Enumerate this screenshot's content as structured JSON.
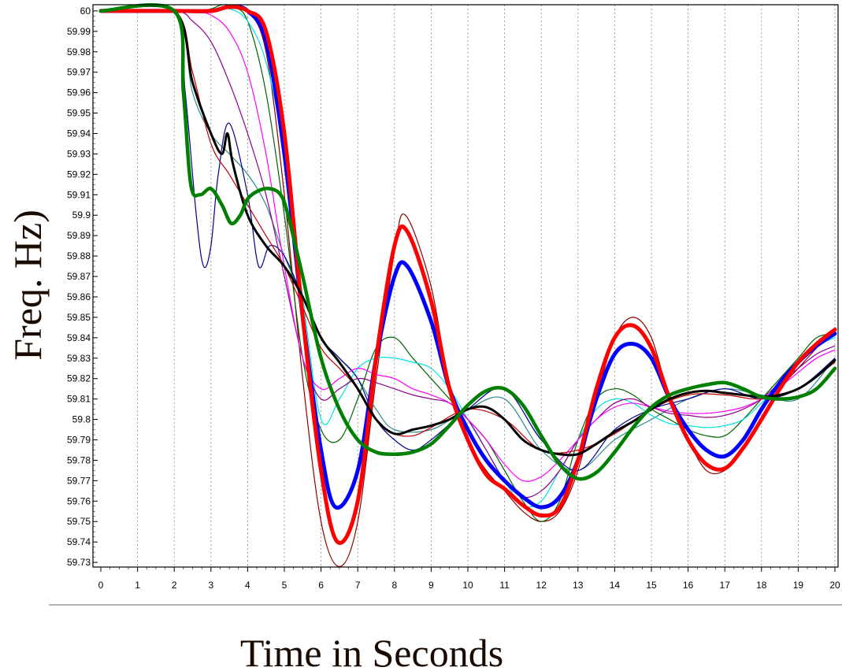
{
  "chart_data": {
    "type": "line",
    "title": "",
    "xlabel": "Time in Seconds",
    "ylabel": "Freq. Hz)",
    "xlim": [
      0,
      20
    ],
    "ylim": [
      59.73,
      60.0
    ],
    "x_ticks": [
      0,
      1,
      2,
      3,
      4,
      5,
      6,
      7,
      8,
      9,
      10,
      11,
      12,
      13,
      14,
      15,
      16,
      17,
      18,
      19,
      20
    ],
    "y_ticks": [
      "60",
      "59.99",
      "59.98",
      "59.97",
      "59.96",
      "59.95",
      "59.94",
      "59.93",
      "59.92",
      "59.91",
      "59.9",
      "59.89",
      "59.88",
      "59.87",
      "59.86",
      "59.85",
      "59.84",
      "59.83",
      "59.82",
      "59.81",
      "59.8",
      "59.79",
      "59.78",
      "59.77",
      "59.76",
      "59.75",
      "59.74",
      "59.73"
    ],
    "grid": "vertical dashed",
    "series": [
      {
        "color": "#8b0000",
        "width": 1.2,
        "x": [
          0,
          2,
          3,
          3.5,
          4,
          4.5,
          5,
          5.5,
          6,
          6.5,
          7,
          7.5,
          8,
          8.3,
          9,
          9.5,
          10,
          10.5,
          11,
          11.5,
          12,
          12.5,
          13,
          13.5,
          14,
          14.5,
          15,
          15.5,
          16,
          16.5,
          17,
          17.5,
          18,
          18.5,
          19,
          19.5,
          20
        ],
        "y": [
          60.0,
          60.0,
          60.0,
          60.002,
          60.0,
          59.98,
          59.91,
          59.82,
          59.75,
          59.728,
          59.75,
          59.82,
          59.882,
          59.9,
          59.865,
          59.815,
          59.79,
          59.775,
          59.765,
          59.755,
          59.75,
          59.755,
          59.775,
          59.81,
          59.84,
          59.85,
          59.84,
          59.81,
          59.79,
          59.775,
          59.775,
          59.785,
          59.8,
          59.815,
          59.825,
          59.835,
          59.845
        ]
      },
      {
        "color": "#2e8b8b",
        "width": 1.2,
        "x": [
          0,
          2,
          2.5,
          3,
          3.5,
          4,
          4.5,
          5,
          5.5,
          6,
          6.5,
          7,
          7.5,
          8,
          9,
          10,
          11,
          12,
          13,
          14,
          15,
          16,
          17,
          18,
          19,
          20
        ],
        "y": [
          60.0,
          60.0,
          59.96,
          59.94,
          59.93,
          59.92,
          59.905,
          59.88,
          59.86,
          59.84,
          59.83,
          59.82,
          59.805,
          59.795,
          59.795,
          59.805,
          59.81,
          59.785,
          59.775,
          59.79,
          59.8,
          59.81,
          59.815,
          59.812,
          59.81,
          59.83
        ]
      },
      {
        "color": "#00008b",
        "width": 1.2,
        "x": [
          0,
          2,
          2.3,
          2.6,
          2.8,
          3,
          3.2,
          3.5,
          4,
          4.3,
          4.6,
          5,
          5.5,
          6,
          6.5,
          7,
          7.5,
          8,
          8.5,
          9,
          10,
          11,
          12,
          13,
          14,
          15,
          16,
          17,
          18,
          19,
          20
        ],
        "y": [
          60.0,
          60.0,
          59.96,
          59.9,
          59.875,
          59.885,
          59.92,
          59.945,
          59.91,
          59.875,
          59.885,
          59.88,
          59.86,
          59.84,
          59.83,
          59.82,
          59.8,
          59.79,
          59.785,
          59.79,
          59.805,
          59.815,
          59.79,
          59.775,
          59.795,
          59.805,
          59.81,
          59.815,
          59.81,
          59.815,
          59.83
        ]
      },
      {
        "color": "#006400",
        "width": 1.2,
        "x": [
          0,
          2,
          2.5,
          3,
          3.3,
          3.6,
          4,
          4.5,
          5,
          5.5,
          6,
          6.5,
          7,
          7.5,
          8,
          8.5,
          9,
          9.5,
          10,
          10.5,
          11,
          11.5,
          12,
          12.5,
          13,
          13.5,
          14,
          14.5,
          15,
          15.5,
          16,
          16.5,
          17,
          17.5,
          18,
          18.5,
          19,
          19.5,
          20
        ],
        "y": [
          60.0,
          60.0,
          60.0,
          60.001,
          60.003,
          60.002,
          59.995,
          59.96,
          59.9,
          59.83,
          59.795,
          59.79,
          59.81,
          59.835,
          59.84,
          59.83,
          59.82,
          59.81,
          59.8,
          59.79,
          59.775,
          59.76,
          59.75,
          59.76,
          59.79,
          59.81,
          59.815,
          59.812,
          59.805,
          59.8,
          59.795,
          59.792,
          59.792,
          59.8,
          59.81,
          59.82,
          59.83,
          59.84,
          59.842
        ]
      },
      {
        "color": "#00e0e0",
        "width": 1.2,
        "x": [
          0,
          2,
          2.5,
          3,
          3.5,
          4,
          4.5,
          5,
          5.5,
          6,
          6.5,
          7,
          7.5,
          8,
          8.5,
          9,
          9.5,
          10,
          10.5,
          11,
          11.5,
          12,
          12.5,
          13,
          13.5,
          14,
          14.5,
          15,
          15.5,
          16,
          16.5,
          17,
          17.5,
          18,
          18.5,
          19,
          19.5,
          20
        ],
        "y": [
          60.0,
          60.0,
          60.0,
          60.0,
          60.001,
          59.995,
          59.975,
          59.93,
          59.86,
          59.8,
          59.81,
          59.825,
          59.83,
          59.83,
          59.828,
          59.825,
          59.815,
          59.8,
          59.785,
          59.77,
          59.758,
          59.76,
          59.775,
          59.79,
          59.805,
          59.81,
          59.808,
          59.802,
          59.798,
          59.797,
          59.796,
          59.797,
          59.8,
          59.808,
          59.818,
          59.828,
          59.836,
          59.84
        ]
      },
      {
        "color": "#8b008b",
        "width": 1.2,
        "x": [
          0,
          2,
          2.5,
          3,
          3.5,
          4,
          4.5,
          5,
          5.5,
          6,
          6.5,
          7,
          7.5,
          8,
          8.5,
          9,
          9.5,
          10,
          10.5,
          11,
          11.5,
          12,
          12.5,
          13,
          13.5,
          14,
          14.5,
          15,
          15.5,
          16,
          16.5,
          17,
          17.5,
          18,
          18.5,
          19,
          19.5,
          20
        ],
        "y": [
          60.0,
          60.0,
          59.995,
          59.985,
          59.965,
          59.94,
          59.91,
          59.87,
          59.83,
          59.81,
          59.815,
          59.82,
          59.818,
          59.815,
          59.812,
          59.81,
          59.808,
          59.8,
          59.785,
          59.77,
          59.762,
          59.765,
          59.775,
          59.79,
          59.8,
          59.808,
          59.81,
          59.806,
          59.803,
          59.802,
          59.801,
          59.802,
          59.805,
          59.81,
          59.818,
          59.825,
          59.832,
          59.836
        ]
      },
      {
        "color": "#ff00ff",
        "width": 1.2,
        "x": [
          0,
          2,
          2.5,
          3,
          3.5,
          4,
          4.5,
          5,
          5.5,
          6,
          6.5,
          7,
          7.5,
          8,
          8.5,
          9,
          9.5,
          10,
          10.5,
          11,
          11.5,
          12,
          12.5,
          13,
          13.5,
          14,
          14.5,
          15,
          15.5,
          16,
          16.5,
          17,
          17.5,
          18,
          18.5,
          19,
          19.5,
          20
        ],
        "y": [
          60.0,
          60.0,
          60.0,
          59.998,
          59.99,
          59.97,
          59.93,
          59.875,
          59.83,
          59.815,
          59.82,
          59.825,
          59.822,
          59.82,
          59.815,
          59.812,
          59.808,
          59.8,
          59.79,
          59.778,
          59.77,
          59.772,
          59.78,
          59.79,
          59.8,
          59.806,
          59.808,
          59.806,
          59.804,
          59.803,
          59.803,
          59.804,
          59.806,
          59.81,
          59.816,
          59.823,
          59.83,
          59.834
        ]
      },
      {
        "color": "#c00000",
        "width": 1.2,
        "x": [
          0,
          2,
          2.5,
          3,
          3.5,
          4,
          4.5,
          5,
          5.5,
          6,
          6.5,
          7,
          7.5,
          8,
          8.5,
          9,
          10,
          11,
          12,
          13,
          14,
          15,
          16,
          17,
          18,
          19,
          20
        ],
        "y": [
          60.0,
          60.0,
          59.97,
          59.935,
          59.92,
          59.905,
          59.89,
          59.875,
          59.855,
          59.835,
          59.825,
          59.815,
          59.8,
          59.793,
          59.792,
          59.796,
          59.805,
          59.8,
          59.785,
          59.785,
          59.793,
          59.805,
          59.812,
          59.812,
          59.81,
          59.815,
          59.828
        ]
      },
      {
        "color": "#0000ff",
        "width": 5,
        "x": [
          0,
          2,
          3,
          3.5,
          4,
          4.5,
          5,
          5.5,
          6,
          6.4,
          7,
          7.5,
          8,
          8.35,
          9,
          9.5,
          10,
          10.5,
          11,
          11.5,
          12,
          12.5,
          13,
          13.5,
          14,
          14.5,
          15,
          15.5,
          16,
          16.5,
          17,
          17.5,
          18,
          18.5,
          19,
          19.5,
          20
        ],
        "y": [
          60.0,
          60.0,
          60.0,
          60.002,
          60.0,
          59.985,
          59.93,
          59.85,
          59.785,
          59.757,
          59.775,
          59.83,
          59.87,
          59.875,
          59.848,
          59.815,
          59.795,
          59.78,
          59.77,
          59.762,
          59.757,
          59.762,
          59.78,
          59.81,
          59.832,
          59.837,
          59.83,
          59.81,
          59.795,
          59.785,
          59.782,
          59.79,
          59.805,
          59.818,
          59.828,
          59.836,
          59.842
        ]
      },
      {
        "color": "#ff0000",
        "width": 5,
        "x": [
          0,
          2,
          3,
          3.5,
          4,
          4.5,
          5,
          5.5,
          6,
          6.45,
          7,
          7.5,
          8,
          8.35,
          9,
          9.5,
          10,
          10.5,
          11,
          11.5,
          12,
          12.5,
          13,
          13.5,
          14,
          14.5,
          15,
          15.5,
          16,
          16.5,
          17,
          17.5,
          18,
          18.5,
          19,
          19.5,
          20
        ],
        "y": [
          60.0,
          60.0,
          60.0,
          60.002,
          60.0,
          59.99,
          59.94,
          59.85,
          59.775,
          59.74,
          59.76,
          59.83,
          59.885,
          59.892,
          59.858,
          59.815,
          59.79,
          59.773,
          59.766,
          59.758,
          59.753,
          59.757,
          59.78,
          59.815,
          59.84,
          59.846,
          59.835,
          59.81,
          59.79,
          59.778,
          59.776,
          59.786,
          59.8,
          59.815,
          59.828,
          59.837,
          59.844
        ]
      },
      {
        "color": "#000000",
        "width": 3,
        "x": [
          0,
          2,
          2.5,
          3,
          3.3,
          3.45,
          3.6,
          4,
          4.5,
          5,
          5.5,
          6,
          6.5,
          7,
          7.5,
          8,
          8.5,
          9,
          9.5,
          10,
          10.5,
          11,
          11.5,
          12,
          12.5,
          13,
          13.5,
          14,
          14.5,
          15,
          15.5,
          16,
          16.5,
          17,
          17.5,
          18,
          18.5,
          19,
          19.5,
          20
        ],
        "y": [
          60.0,
          60.0,
          59.965,
          59.94,
          59.93,
          59.94,
          59.925,
          59.9,
          59.885,
          59.875,
          59.86,
          59.84,
          59.828,
          59.815,
          59.8,
          59.793,
          59.795,
          59.797,
          59.8,
          59.805,
          59.806,
          59.8,
          59.79,
          59.785,
          59.783,
          59.783,
          59.788,
          59.794,
          59.799,
          59.805,
          59.81,
          59.813,
          59.814,
          59.813,
          59.812,
          59.811,
          59.812,
          59.815,
          59.821,
          59.829
        ]
      },
      {
        "color": "#008000",
        "width": 4.5,
        "x": [
          0,
          2,
          2.25,
          2.45,
          2.7,
          3,
          3.3,
          3.55,
          3.8,
          4,
          4.3,
          4.6,
          4.9,
          5.1,
          5.5,
          6,
          6.5,
          7,
          7.5,
          8,
          8.5,
          9,
          9.5,
          10,
          10.5,
          11,
          11.5,
          12,
          12.5,
          13,
          13.5,
          14,
          14.5,
          15,
          15.5,
          16,
          16.5,
          17,
          17.5,
          18,
          18.5,
          19,
          19.5,
          20
        ],
        "y": [
          60.0,
          60.0,
          59.96,
          59.915,
          59.91,
          59.913,
          59.905,
          59.896,
          59.9,
          59.908,
          59.912,
          59.913,
          59.91,
          59.9,
          59.87,
          59.83,
          59.805,
          59.79,
          59.784,
          59.783,
          59.784,
          59.788,
          59.797,
          59.807,
          59.814,
          59.815,
          59.807,
          59.792,
          59.778,
          59.771,
          59.774,
          59.784,
          59.796,
          59.806,
          59.812,
          59.815,
          59.817,
          59.818,
          59.815,
          59.811,
          59.81,
          59.811,
          59.815,
          59.825
        ]
      }
    ]
  }
}
